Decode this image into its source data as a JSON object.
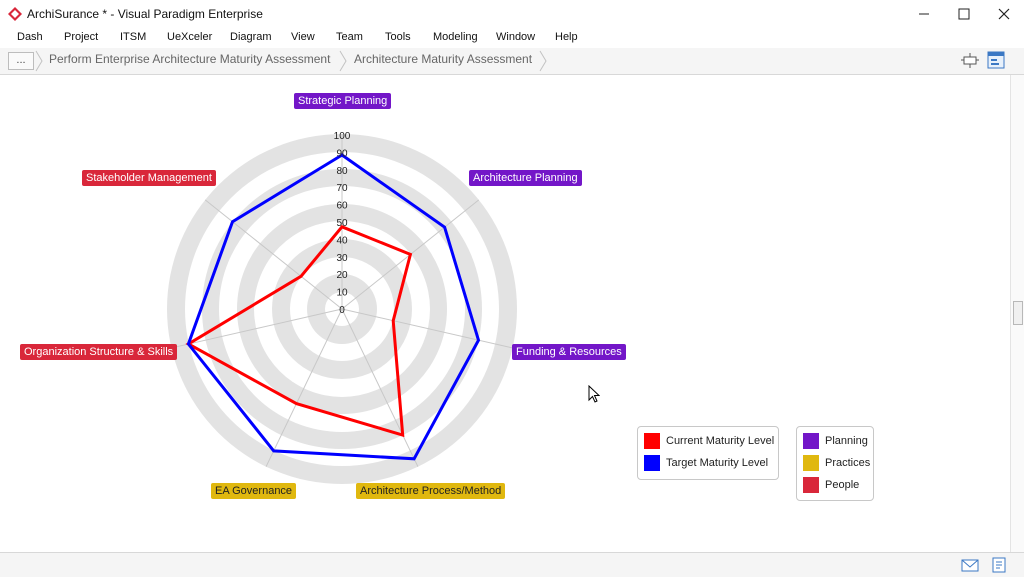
{
  "window": {
    "title": "ArchiSurance * - Visual Paradigm Enterprise",
    "app_icon": "visual-paradigm-logo-icon",
    "controls": [
      "minimize-icon",
      "maximize-icon",
      "close-icon"
    ]
  },
  "menu": {
    "items": [
      "Dash",
      "Project",
      "ITSM",
      "UeXceler",
      "Diagram",
      "View",
      "Team",
      "Tools",
      "Modeling",
      "Window",
      "Help"
    ]
  },
  "breadcrumb": {
    "overflow": "...",
    "items": [
      "Perform Enterprise Architecture Maturity Assessment",
      "Architecture Maturity Assessment"
    ]
  },
  "toolbar": {
    "icons": [
      "fit-diagram-icon",
      "diagram-properties-icon"
    ]
  },
  "status": {
    "icons": [
      "mail-icon",
      "notes-icon"
    ]
  },
  "colors": {
    "current": "#ff0000",
    "target": "#0000ff",
    "planning": "#7316c8",
    "practices": "#e0b80f",
    "people": "#d9273a",
    "ring": "#e3e3e3"
  },
  "chart_data": {
    "type": "radar",
    "r_ticks": [
      "100",
      "90",
      "80",
      "70",
      "60",
      "50",
      "40",
      "30",
      "20",
      "10",
      "0"
    ],
    "rlim": [
      0,
      100
    ],
    "categories": [
      {
        "name": "Strategic Planning",
        "group": "planning"
      },
      {
        "name": "Architecture Planning",
        "group": "planning"
      },
      {
        "name": "Funding & Resources",
        "group": "planning"
      },
      {
        "name": "Architecture Process/Method",
        "group": "practices"
      },
      {
        "name": "EA Governance",
        "group": "practices"
      },
      {
        "name": "Organization Structure & Skills",
        "group": "people"
      },
      {
        "name": "Stakeholder Management",
        "group": "people"
      }
    ],
    "series": [
      {
        "name": "Current Maturity Level",
        "color": "#ff0000",
        "values": [
          47,
          50,
          30,
          80,
          60,
          90,
          30
        ]
      },
      {
        "name": "Target Maturity Level",
        "color": "#0000ff",
        "values": [
          88,
          75,
          80,
          95,
          90,
          90,
          80
        ]
      }
    ],
    "groups": [
      {
        "key": "planning",
        "name": "Planning",
        "color": "#7316c8"
      },
      {
        "key": "practices",
        "name": "Practices",
        "color": "#e0b80f"
      },
      {
        "key": "people",
        "name": "People",
        "color": "#d9273a"
      }
    ]
  }
}
